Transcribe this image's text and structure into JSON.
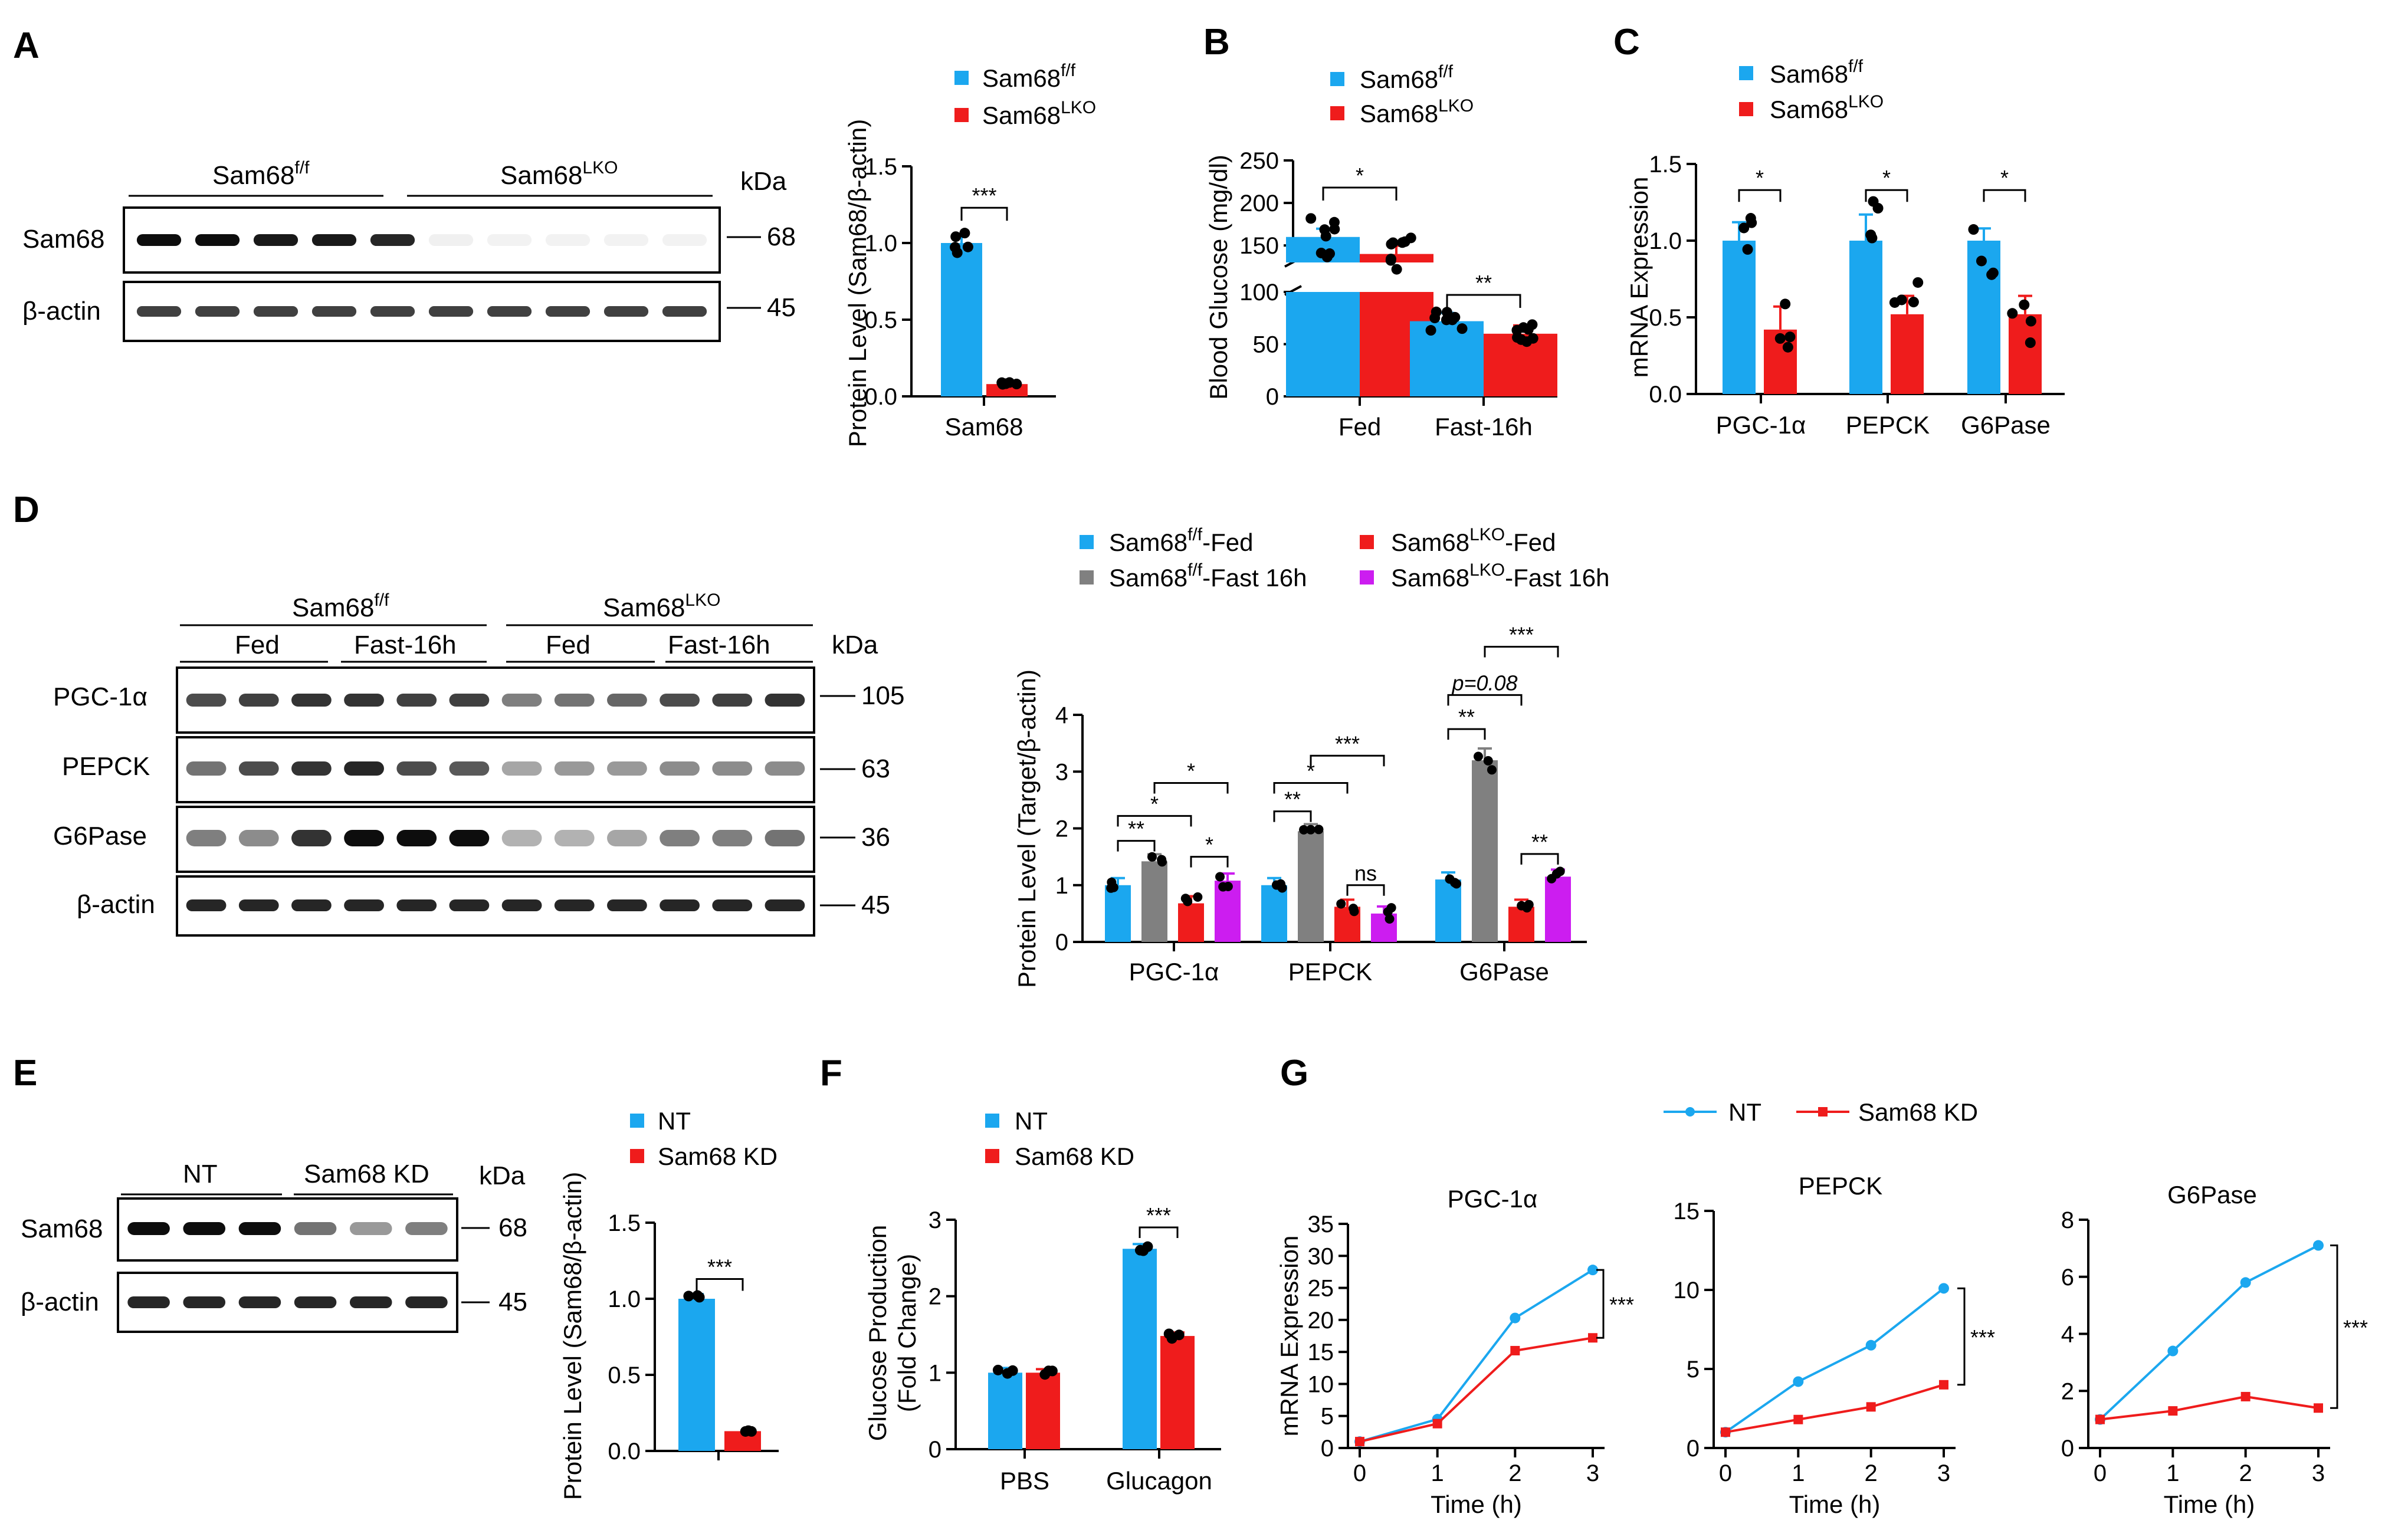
{
  "colors": {
    "ff": "#1ba7ef",
    "lko": "#ef1c1c",
    "gray": "#808080",
    "purple": "#cc1df0",
    "nt": "#1ba7ef",
    "kd": "#ef1c1c",
    "dot": "#000000"
  },
  "panel_labels": [
    "A",
    "B",
    "C",
    "D",
    "E",
    "F",
    "G"
  ],
  "legend": {
    "ff": "Sam68",
    "lko": "Sam68",
    "sup_ff": "f/f",
    "sup_lko": "LKO",
    "nt": "NT",
    "kd": "Sam68 KD",
    "suffix_fed": "-Fed",
    "suffix_fast": "-Fast 16h"
  },
  "blots": {
    "kda": "kDa",
    "A": {
      "groups": [
        "Sam68",
        "Sam68"
      ],
      "group_sups": [
        "f/f",
        "LKO"
      ],
      "rows": [
        "Sam68",
        "β-actin"
      ],
      "sizes": [
        "68",
        "45"
      ]
    },
    "D": {
      "groups": [
        "Sam68",
        "Sam68"
      ],
      "group_sups": [
        "f/f",
        "LKO"
      ],
      "subgroups": [
        "Fed",
        "Fast-16h",
        "Fed",
        "Fast-16h"
      ],
      "rows": [
        "PGC-1α",
        "PEPCK",
        "G6Pase",
        "β-actin"
      ],
      "sizes": [
        "105",
        "63",
        "36",
        "45"
      ]
    },
    "E": {
      "groups": [
        "NT",
        "Sam68 KD"
      ],
      "rows": [
        "Sam68",
        "β-actin"
      ],
      "sizes": [
        "68",
        "45"
      ]
    }
  },
  "chart_data": [
    {
      "panel": "A",
      "type": "bar",
      "title": "",
      "ylabel": "Protein Level (Sam68/β-actin)",
      "categories": [
        "Sam68"
      ],
      "series": [
        {
          "name": "Sam68 f/f",
          "values": [
            1.0
          ]
        },
        {
          "name": "Sam68 LKO",
          "values": [
            0.08
          ]
        }
      ],
      "ylim": [
        0,
        1.5
      ],
      "yticks": [
        "0.0",
        "0.5",
        "1.0",
        "1.5"
      ],
      "significance": [
        "***"
      ]
    },
    {
      "panel": "B",
      "type": "bar",
      "title": "",
      "ylabel": "Blood Glucose (mg/dl)",
      "categories": [
        "Fed",
        "Fast-16h"
      ],
      "series": [
        {
          "name": "Sam68 f/f",
          "values": [
            160,
            72
          ]
        },
        {
          "name": "Sam68 LKO",
          "values": [
            140,
            60
          ]
        }
      ],
      "ylim": [
        0,
        250
      ],
      "axis_break": [
        100,
        130
      ],
      "yticks": [
        "0",
        "50",
        "100",
        "150",
        "200",
        "250"
      ],
      "significance": [
        "*",
        "**"
      ]
    },
    {
      "panel": "C",
      "type": "bar",
      "title": "",
      "ylabel": "mRNA Expression",
      "categories": [
        "PGC-1α",
        "PEPCK",
        "G6Pase"
      ],
      "series": [
        {
          "name": "Sam68 f/f",
          "values": [
            1.0,
            1.0,
            1.0
          ]
        },
        {
          "name": "Sam68 LKO",
          "values": [
            0.42,
            0.52,
            0.52
          ]
        }
      ],
      "ylim": [
        0,
        1.5
      ],
      "yticks": [
        "0.0",
        "0.5",
        "1.0",
        "1.5"
      ],
      "significance": [
        "*",
        "*",
        "*"
      ]
    },
    {
      "panel": "D",
      "type": "bar",
      "title": "",
      "ylabel": "Protein Level (Target/β-actin)",
      "categories": [
        "PGC-1α",
        "PEPCK",
        "G6Pase"
      ],
      "series": [
        {
          "name": "Sam68 f/f-Fed",
          "values": [
            1.0,
            1.0,
            1.1
          ]
        },
        {
          "name": "Sam68 f/f-Fast 16h",
          "values": [
            1.42,
            1.95,
            3.2
          ]
        },
        {
          "name": "Sam68 LKO-Fed",
          "values": [
            0.68,
            0.62,
            0.62
          ]
        },
        {
          "name": "Sam68 LKO-Fast 16h",
          "values": [
            1.08,
            0.5,
            1.15
          ]
        }
      ],
      "ylim": [
        0,
        4
      ],
      "yticks": [
        "0",
        "1",
        "2",
        "3",
        "4"
      ],
      "significance": [
        "**",
        "*",
        "*",
        "*",
        "**",
        "*",
        "***",
        "ns",
        "**",
        "p=0.08",
        "***",
        "**"
      ]
    },
    {
      "panel": "E",
      "type": "bar",
      "title": "",
      "ylabel": "Protein Level (Sam68/β-actin)",
      "categories": [
        ""
      ],
      "series": [
        {
          "name": "NT",
          "values": [
            1.0
          ]
        },
        {
          "name": "Sam68 KD",
          "values": [
            0.13
          ]
        }
      ],
      "ylim": [
        0,
        1.5
      ],
      "yticks": [
        "0.0",
        "0.5",
        "1.0",
        "1.5"
      ],
      "significance": [
        "***"
      ]
    },
    {
      "panel": "F",
      "type": "bar",
      "title": "",
      "ylabel": "Glucose Production (Fold Change)",
      "ylabel_lines": [
        "Glucose Production",
        "(Fold Change)"
      ],
      "categories": [
        "PBS",
        "Glucagon"
      ],
      "series": [
        {
          "name": "NT",
          "values": [
            1.0,
            2.62
          ]
        },
        {
          "name": "Sam68 KD",
          "values": [
            1.0,
            1.48
          ]
        }
      ],
      "ylim": [
        0,
        3
      ],
      "yticks": [
        "0",
        "1",
        "2",
        "3"
      ],
      "significance": [
        "***"
      ]
    },
    {
      "panel": "G",
      "type": "line",
      "title": "PGC-1α",
      "xlabel": "Time (h)",
      "ylabel": "mRNA Expression",
      "x": [
        0,
        1,
        2,
        3
      ],
      "series": [
        {
          "name": "NT",
          "values": [
            1,
            4.5,
            20.3,
            27.8
          ]
        },
        {
          "name": "Sam68 KD",
          "values": [
            1,
            3.8,
            15.2,
            17.2
          ]
        }
      ],
      "ylim": [
        0,
        35
      ],
      "yticks": [
        "0",
        "5",
        "10",
        "15",
        "20",
        "25",
        "30",
        "35"
      ],
      "xticks": [
        "0",
        "1",
        "2",
        "3"
      ],
      "significance": [
        "***"
      ]
    },
    {
      "panel": "G",
      "type": "line",
      "title": "PEPCK",
      "xlabel": "Time (h)",
      "ylabel": "",
      "x": [
        0,
        1,
        2,
        3
      ],
      "series": [
        {
          "name": "NT",
          "values": [
            1,
            4.2,
            6.5,
            10.1
          ]
        },
        {
          "name": "Sam68 KD",
          "values": [
            1,
            1.8,
            2.6,
            4.0
          ]
        }
      ],
      "ylim": [
        0,
        15
      ],
      "yticks": [
        "0",
        "5",
        "10",
        "15"
      ],
      "xticks": [
        "0",
        "1",
        "2",
        "3"
      ],
      "significance": [
        "***"
      ]
    },
    {
      "panel": "G",
      "type": "line",
      "title": "G6Pase",
      "xlabel": "Time (h)",
      "ylabel": "",
      "x": [
        0,
        1,
        2,
        3
      ],
      "series": [
        {
          "name": "NT",
          "values": [
            1,
            3.4,
            5.8,
            7.1
          ]
        },
        {
          "name": "Sam68 KD",
          "values": [
            1,
            1.3,
            1.8,
            1.4
          ]
        }
      ],
      "ylim": [
        0,
        8
      ],
      "yticks": [
        "0",
        "2",
        "4",
        "6",
        "8"
      ],
      "xticks": [
        "0",
        "1",
        "2",
        "3"
      ],
      "significance": [
        "***"
      ]
    }
  ]
}
